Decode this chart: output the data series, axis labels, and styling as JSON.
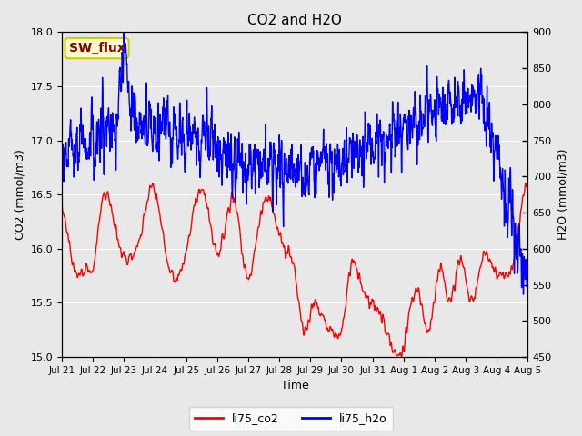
{
  "title": "CO2 and H2O",
  "xlabel": "Time",
  "ylabel_left": "CO2 (mmol/m3)",
  "ylabel_right": "H2O (mmol/m3)",
  "co2_color": "red",
  "h2o_color": "blue",
  "legend_co2": "li75_co2",
  "legend_h2o": "li75_h2o",
  "annotation_text": "SW_flux",
  "annotation_bg": "#ffffcc",
  "annotation_border": "#cccc00",
  "co2_ylim": [
    15.0,
    18.0
  ],
  "h2o_ylim": [
    450,
    900
  ],
  "co2_yticks": [
    15.0,
    15.5,
    16.0,
    16.5,
    17.0,
    17.5,
    18.0
  ],
  "h2o_yticks": [
    450,
    500,
    550,
    600,
    650,
    700,
    750,
    800,
    850,
    900
  ],
  "plot_bg_color": "#e8e8e8",
  "fig_color": "#e8e8e8",
  "grid_color": "white",
  "linewidth": 1.0,
  "n_points": 3000,
  "seed": 7
}
